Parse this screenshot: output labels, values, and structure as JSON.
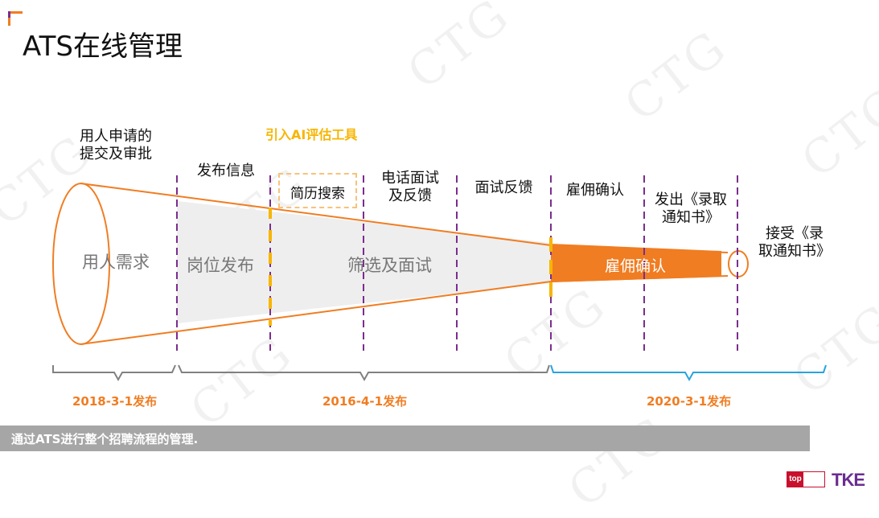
{
  "title": "ATS在线管理",
  "ai_tool_label": "引入AI评估工具",
  "steps": {
    "apply": [
      "用人申请的",
      "提交及审批"
    ],
    "publish_info": "发布信息",
    "resume_search": "简历搜索",
    "phone_interview": [
      "电话面试",
      "及反馈"
    ],
    "interview_feedback": "面试反馈",
    "hire_confirm": "雇佣确认",
    "send_offer": [
      "发出《录取",
      "通知书》"
    ],
    "accept_offer": [
      "接受《录",
      "取通知书》"
    ]
  },
  "stages": {
    "demand": "用人需求",
    "post": "岗位发布",
    "screen": "筛选及面试",
    "hire": "雇佣确认"
  },
  "releases": {
    "r1": "2018-3-1发布",
    "r2": "2016-4-1发布",
    "r3": "2020-3-1发布"
  },
  "banner": "通过ATS进行整个招聘流程的管理.",
  "watermark": "CTG",
  "logos": {
    "top": "top",
    "tke": "TKE"
  },
  "colors": {
    "orange": "#f07d22",
    "purple": "#7b2d8e",
    "gray_bracket": "#808080",
    "blue_bracket": "#29a3dc",
    "ai_yellow": "#f7b500"
  }
}
